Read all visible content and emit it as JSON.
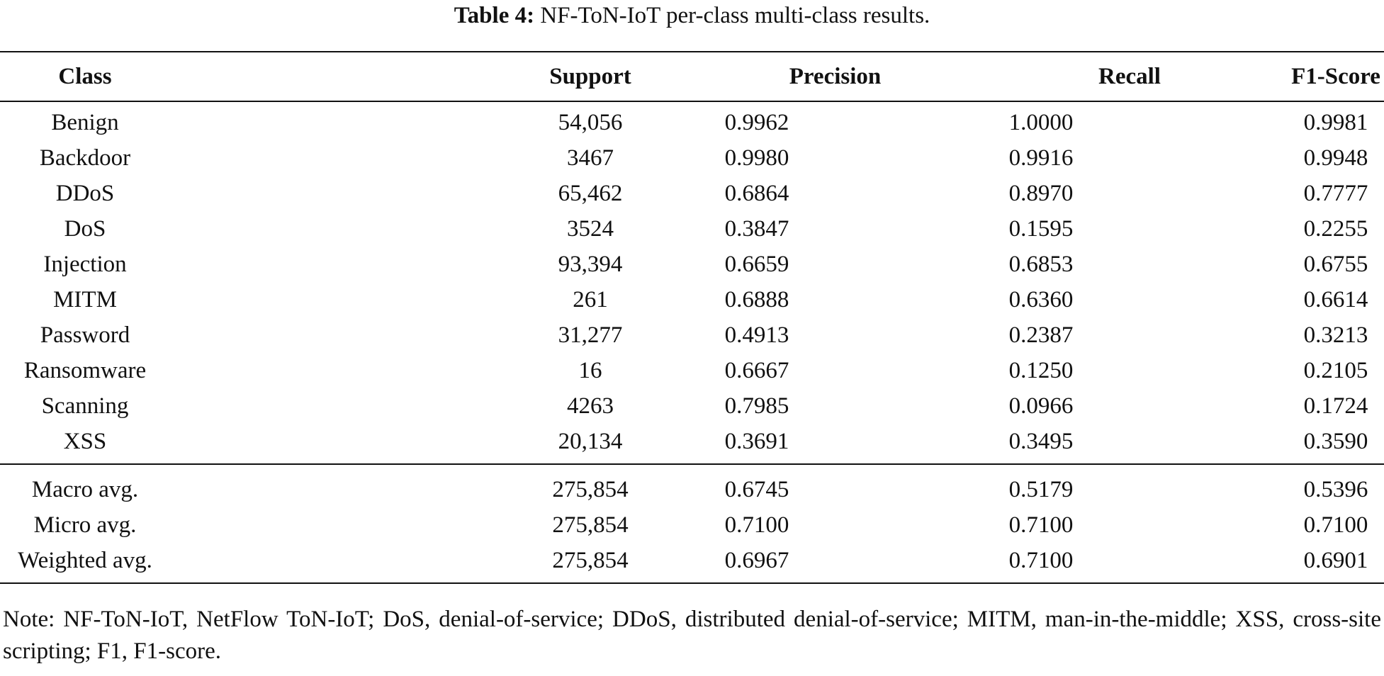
{
  "caption": {
    "label": "Table 4:",
    "text": "NF-ToN-IoT per-class multi-class results."
  },
  "table": {
    "headers": [
      "Class",
      "Support",
      "Precision",
      "Recall",
      "F1-Score"
    ],
    "class_rows": [
      [
        "Benign",
        "54,056",
        "0.9962",
        "1.0000",
        "0.9981"
      ],
      [
        "Backdoor",
        "3467",
        "0.9980",
        "0.9916",
        "0.9948"
      ],
      [
        "DDoS",
        "65,462",
        "0.6864",
        "0.8970",
        "0.7777"
      ],
      [
        "DoS",
        "3524",
        "0.3847",
        "0.1595",
        "0.2255"
      ],
      [
        "Injection",
        "93,394",
        "0.6659",
        "0.6853",
        "0.6755"
      ],
      [
        "MITM",
        "261",
        "0.6888",
        "0.6360",
        "0.6614"
      ],
      [
        "Password",
        "31,277",
        "0.4913",
        "0.2387",
        "0.3213"
      ],
      [
        "Ransomware",
        "16",
        "0.6667",
        "0.1250",
        "0.2105"
      ],
      [
        "Scanning",
        "4263",
        "0.7985",
        "0.0966",
        "0.1724"
      ],
      [
        "XSS",
        "20,134",
        "0.3691",
        "0.3495",
        "0.3590"
      ]
    ],
    "average_rows": [
      [
        "Macro avg.",
        "275,854",
        "0.6745",
        "0.5179",
        "0.5396"
      ],
      [
        "Micro avg.",
        "275,854",
        "0.7100",
        "0.7100",
        "0.7100"
      ],
      [
        "Weighted avg.",
        "275,854",
        "0.6967",
        "0.7100",
        "0.6901"
      ]
    ]
  },
  "note": "Note: NF-ToN-IoT, NetFlow ToN-IoT; DoS, denial-of-service; DDoS, distributed denial-of-service; MITM, man-in-the-middle; XSS, cross-site scripting; F1, F1-score."
}
